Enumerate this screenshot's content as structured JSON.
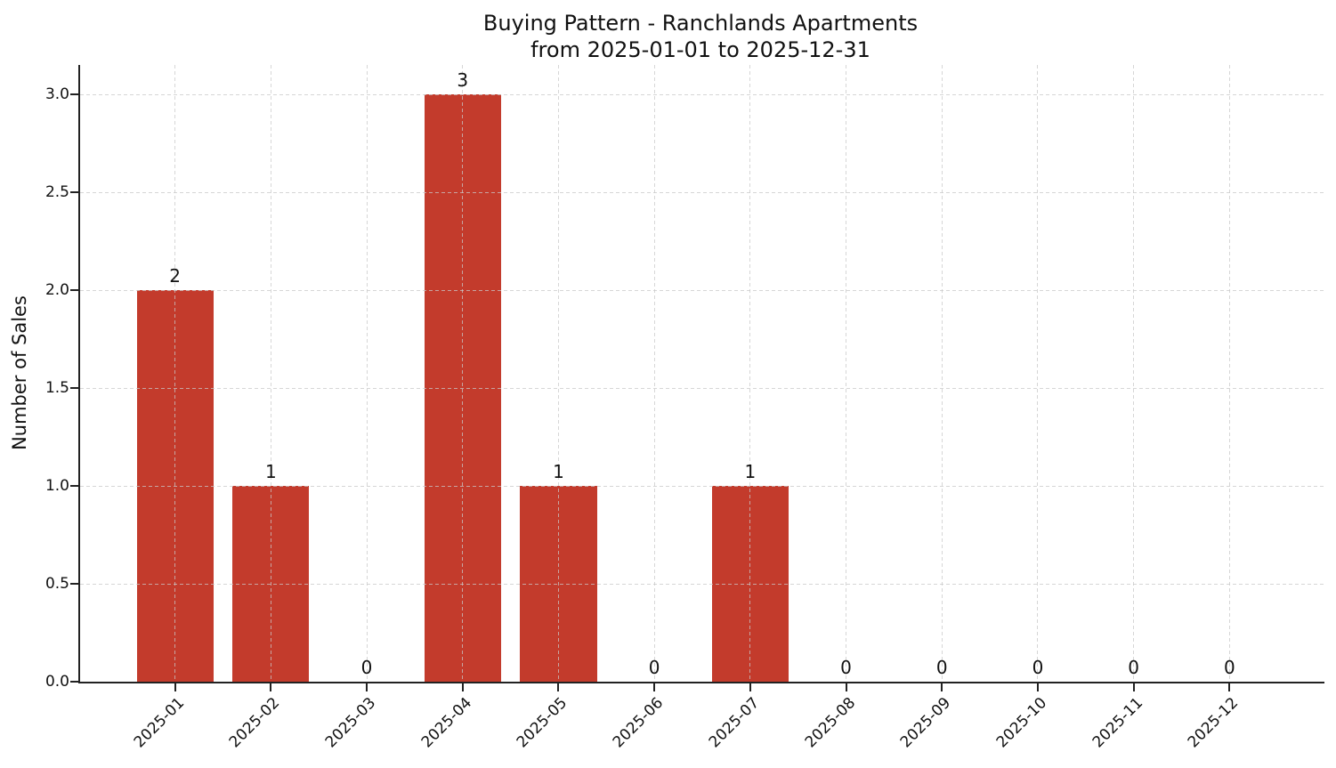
{
  "figure": {
    "title_line1": "Buying Pattern - Ranchlands Apartments",
    "title_line2": "from 2025-01-01 to 2025-12-31"
  },
  "chart_data": {
    "type": "bar",
    "title": "Buying Pattern - Ranchlands Apartments\nfrom 2025-01-01 to 2025-12-31",
    "xlabel": "",
    "ylabel": "Number of Sales",
    "categories": [
      "2025-01",
      "2025-02",
      "2025-03",
      "2025-04",
      "2025-05",
      "2025-06",
      "2025-07",
      "2025-08",
      "2025-09",
      "2025-10",
      "2025-11",
      "2025-12"
    ],
    "values": [
      2,
      1,
      0,
      3,
      1,
      0,
      1,
      0,
      0,
      0,
      0,
      0
    ],
    "bar_value_labels": [
      "2",
      "1",
      "0",
      "3",
      "1",
      "0",
      "1",
      "0",
      "0",
      "0",
      "0",
      "0"
    ],
    "ylim": [
      0,
      3.15
    ],
    "yticks": [
      0,
      0.5,
      1,
      1.5,
      2,
      2.5,
      3
    ],
    "ytick_labels": [
      "0.0",
      "0.5",
      "1.0",
      "1.5",
      "2.0",
      "2.5",
      "3.0"
    ],
    "xtick_rotation_deg": 45,
    "grid": true,
    "legend": "none",
    "colors": {
      "bar": "#c33b2c",
      "grid": "#c9c9c9",
      "axis": "#222222",
      "text": "#111111",
      "background": "#ffffff"
    }
  }
}
